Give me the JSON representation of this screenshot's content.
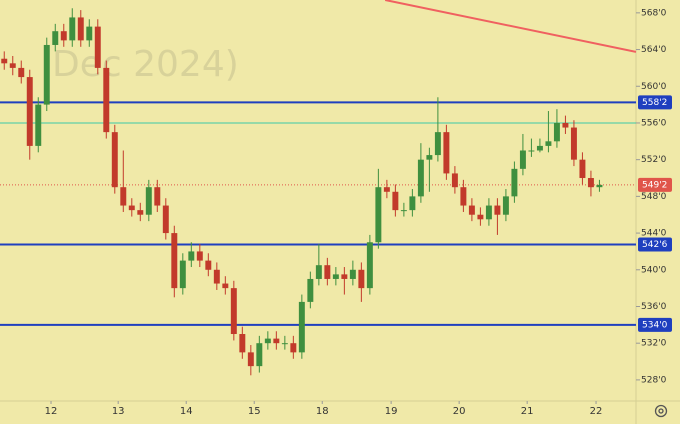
{
  "chart_data": {
    "type": "candlestick",
    "watermark": "Dec 2024)",
    "up_color": "#3f8f3f",
    "down_color": "#c23a2b",
    "open": [
      563,
      562.5,
      562,
      561,
      553.5,
      558,
      564.5,
      566,
      565,
      567.5,
      565,
      566.5,
      562,
      555,
      549,
      547,
      546.5,
      546,
      549,
      547,
      544,
      538,
      541,
      542,
      541,
      540,
      538.5,
      538,
      533,
      531,
      529.5,
      532,
      532.5,
      532,
      532,
      531,
      536.5,
      539,
      540.5,
      539,
      539.5,
      539,
      540,
      538,
      543,
      549,
      548.5,
      546.5,
      546.5,
      548,
      552,
      552.5,
      555,
      550.5,
      549,
      547,
      546,
      545.5,
      547,
      546,
      548,
      551,
      553,
      553,
      553.5,
      554,
      556,
      555.5,
      552,
      550,
      549
    ],
    "high": [
      563.8,
      563.3,
      562.8,
      561.8,
      558.8,
      565.3,
      566.8,
      566.8,
      568.5,
      568.3,
      567.3,
      567.3,
      562.8,
      555.8,
      553,
      547.8,
      547.3,
      549.8,
      549.8,
      547.8,
      544.8,
      541.8,
      543,
      542.8,
      541.8,
      540.8,
      539.3,
      538.8,
      533.8,
      531.8,
      532.8,
      533.3,
      533.3,
      532.8,
      532.8,
      537.3,
      539.8,
      542.8,
      541.3,
      540.3,
      540.3,
      541,
      540.8,
      543.8,
      551,
      549.8,
      549.3,
      547.3,
      548.8,
      553.8,
      553.3,
      558.8,
      555.8,
      551.3,
      549.8,
      547.8,
      546.8,
      547.8,
      547.8,
      548.8,
      551.8,
      554.8,
      554.3,
      554.3,
      557.3,
      557.5,
      556.8,
      556.3,
      552.8,
      550.8,
      549.8
    ],
    "low": [
      561.8,
      561.2,
      560.3,
      552,
      552.8,
      557.3,
      563.8,
      564.3,
      564.3,
      564.3,
      564.3,
      561.3,
      554.3,
      548.3,
      546.3,
      545.8,
      545.3,
      545.3,
      546.3,
      543.3,
      537,
      537.3,
      540.3,
      540.3,
      539.3,
      537.8,
      537.3,
      532.3,
      530.3,
      528.5,
      528.8,
      531.3,
      531.3,
      531.3,
      530.3,
      530.3,
      535.8,
      538.3,
      538.3,
      538.3,
      537.3,
      538.3,
      536.5,
      537.3,
      542.3,
      547.8,
      545.8,
      545.8,
      545.8,
      547.3,
      548.5,
      551.8,
      549.8,
      548.3,
      546.3,
      545.3,
      544.8,
      544.8,
      543.8,
      545.3,
      547.3,
      550.3,
      552.3,
      552.8,
      552.8,
      553.3,
      554.8,
      551.3,
      549.3,
      548,
      548.5
    ],
    "close": [
      562.5,
      562,
      561,
      553.5,
      558,
      564.5,
      566,
      565,
      567.5,
      565,
      566.5,
      562,
      555,
      549,
      547,
      546.5,
      546,
      549,
      547,
      544,
      538,
      541,
      542,
      541,
      540,
      538.5,
      538,
      533,
      531,
      529.5,
      532,
      532.5,
      532,
      532,
      531,
      536.5,
      539,
      540.5,
      539,
      539.5,
      539,
      540,
      538,
      543,
      549,
      548.5,
      546.5,
      546.5,
      548,
      552,
      552.5,
      555,
      550.5,
      549,
      547,
      546,
      545.5,
      547,
      546,
      548,
      551,
      553,
      553,
      553.5,
      554,
      556,
      555.5,
      552,
      550,
      549,
      549.25
    ],
    "xlim": [
      -0.5,
      74.3
    ],
    "xticks": [
      {
        "value": 5.5,
        "label": "12"
      },
      {
        "value": 13.4,
        "label": "13"
      },
      {
        "value": 21.4,
        "label": "14"
      },
      {
        "value": 29.4,
        "label": "15"
      },
      {
        "value": 37.4,
        "label": "18"
      },
      {
        "value": 45.5,
        "label": "19"
      },
      {
        "value": 53.5,
        "label": "20"
      },
      {
        "value": 61.5,
        "label": "21"
      },
      {
        "value": 69.6,
        "label": "22"
      }
    ],
    "ylim": [
      525.7,
      569.4
    ],
    "yticks": [
      {
        "value": 528,
        "label": "528'0"
      },
      {
        "value": 532,
        "label": "532'0"
      },
      {
        "value": 536,
        "label": "536'0"
      },
      {
        "value": 540,
        "label": "540'0"
      },
      {
        "value": 544,
        "label": "544'0"
      },
      {
        "value": 548,
        "label": "548'0"
      },
      {
        "value": 552,
        "label": "552'0"
      },
      {
        "value": 556,
        "label": "556'0"
      },
      {
        "value": 560,
        "label": "560'0"
      },
      {
        "value": 564,
        "label": "564'0"
      },
      {
        "value": 568,
        "label": "568'0"
      }
    ],
    "levels": [
      {
        "value": 558.25,
        "label": "558'2",
        "color": "#1f3fbf"
      },
      {
        "value": 556,
        "color": "#3cc9a8"
      },
      {
        "value": 542.75,
        "label": "542'6",
        "color": "#1f3fbf"
      },
      {
        "value": 534,
        "label": "534'0",
        "color": "#1f3fbf"
      }
    ],
    "last_price": {
      "value": 549.25,
      "label": "549'2",
      "color": "#e0554a"
    },
    "trendline": {
      "x": [
        44.8,
        74.3
      ],
      "y": [
        569.4,
        563.75
      ],
      "color": "#f06060"
    }
  }
}
